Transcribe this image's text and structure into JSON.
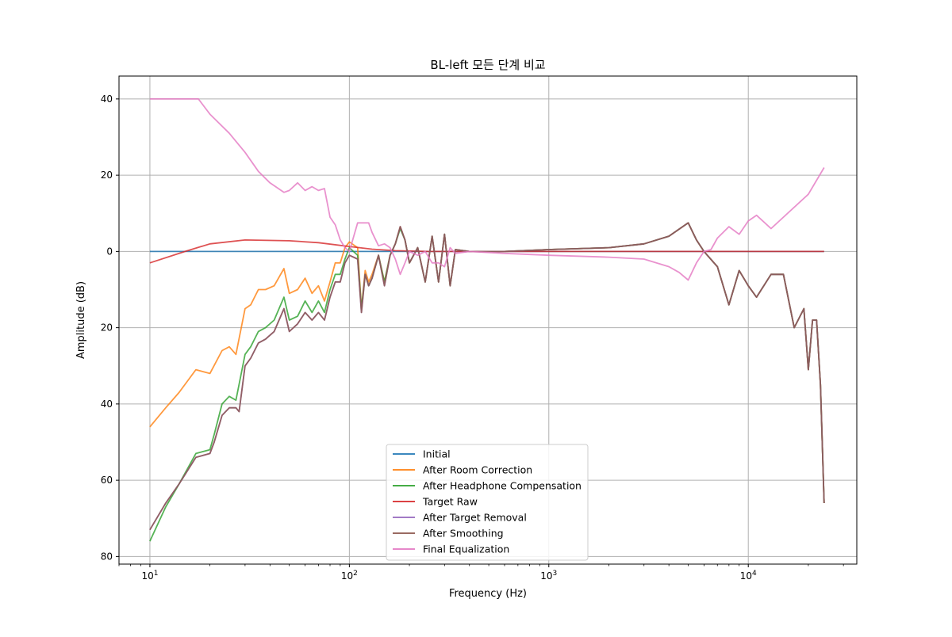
{
  "chart_data": {
    "type": "line",
    "title": "BL-left 모든 단계 비교",
    "xlabel": "Frequency (Hz)",
    "ylabel": "Amplitude (dB)",
    "xscale": "log",
    "xlim": [
      7,
      35000
    ],
    "ylim": [
      -82,
      46
    ],
    "grid": true,
    "legend_position": "lower center",
    "x_tick_labels": [
      {
        "base": "10",
        "exp": "1"
      },
      {
        "base": "10",
        "exp": "2"
      },
      {
        "base": "10",
        "exp": "3"
      },
      {
        "base": "10",
        "exp": "4"
      }
    ],
    "y_ticks": [
      40,
      20,
      0,
      -20,
      -40,
      -60,
      -80
    ],
    "y_tick_labels": [
      "40",
      "20",
      "0",
      "\u001f20",
      "\u001f40",
      "\u001f60",
      "\u001f80"
    ],
    "series": [
      {
        "name": "Initial",
        "color": "#1f77b4",
        "x": [
          10,
          24000
        ],
        "y": [
          0,
          0
        ]
      },
      {
        "name": "After Room Correction",
        "color": "#ff7f0e",
        "x": [
          10,
          12,
          14,
          17,
          20,
          23,
          25,
          27,
          30,
          32,
          35,
          38,
          42,
          47,
          50,
          55,
          60,
          65,
          70,
          75,
          80,
          85,
          90,
          95,
          100,
          110,
          115,
          120,
          125,
          130,
          140,
          150,
          160,
          170,
          180,
          190,
          200,
          220,
          240,
          260,
          280,
          300,
          320,
          340,
          400,
          600,
          1000,
          2000,
          3000,
          4000,
          5000,
          5500,
          6000,
          7000,
          8000,
          9000,
          10000,
          11000,
          13000,
          15000,
          17000,
          19000,
          20000,
          21000,
          22000,
          23000,
          24000
        ],
        "y": [
          -46,
          -41,
          -37,
          -31,
          -32,
          -26,
          -25,
          -27,
          -15,
          -14,
          -10,
          -10,
          -9,
          -4.5,
          -11,
          -10,
          -7,
          -11,
          -9,
          -13,
          -8,
          -3,
          -3,
          1,
          2.5,
          1,
          -15,
          -5,
          -8,
          -6,
          -1,
          -8,
          -1,
          2,
          6.5,
          3,
          -3,
          1,
          -8,
          4,
          -8,
          4.5,
          -9,
          0.5,
          0,
          0,
          0.5,
          1,
          2,
          4,
          7.5,
          3,
          0,
          -4,
          -14,
          -5,
          -9,
          -12,
          -6,
          -6,
          -20,
          -15,
          -31,
          -18,
          -18,
          -35,
          -66
        ]
      },
      {
        "name": "After Headphone Compensation",
        "color": "#2ca02c",
        "x": [
          10,
          12,
          14,
          17,
          20,
          21,
          23,
          25,
          27,
          30,
          32,
          35,
          38,
          42,
          47,
          50,
          55,
          60,
          65,
          70,
          75,
          80,
          85,
          90,
          95,
          100,
          110,
          115,
          120,
          125,
          130,
          140,
          150,
          160,
          170,
          180,
          190,
          200,
          220,
          240,
          260,
          280,
          300,
          320,
          340,
          400,
          600,
          1000,
          2000,
          3000,
          4000,
          5000,
          5500,
          6000,
          7000,
          8000,
          9000,
          10000,
          11000,
          13000,
          15000,
          17000,
          19000,
          20000,
          21000,
          22000,
          23000,
          24000
        ],
        "y": [
          -76,
          -67,
          -61,
          -53,
          -52,
          -48,
          -40,
          -38,
          -39,
          -27,
          -25,
          -21,
          -20,
          -18,
          -12,
          -18,
          -17,
          -13,
          -16,
          -13,
          -16,
          -10,
          -6,
          -6,
          -2,
          1,
          -1,
          -15,
          -6,
          -9,
          -7,
          -1,
          -8,
          -1,
          2,
          6,
          3,
          -3,
          1,
          -8,
          4,
          -8,
          4.5,
          -9,
          0.5,
          0,
          0,
          0.5,
          1,
          2,
          4,
          7.5,
          3,
          0,
          -4,
          -14,
          -5,
          -9,
          -12,
          -6,
          -6,
          -20,
          -15,
          -31,
          -18,
          -18,
          -35,
          -66
        ]
      },
      {
        "name": "Target Raw",
        "color": "#d62728",
        "x": [
          10,
          15,
          20,
          30,
          50,
          70,
          100,
          130,
          170,
          250,
          400,
          1000,
          24000
        ],
        "y": [
          -3,
          0,
          2,
          3,
          2.8,
          2.3,
          1.3,
          0.6,
          0.2,
          0,
          0,
          0,
          0
        ]
      },
      {
        "name": "After Target Removal",
        "color": "#9467bd",
        "x": [
          10,
          12,
          14,
          17,
          20,
          21,
          23,
          25,
          27,
          28,
          30,
          32,
          35,
          38,
          42,
          47,
          50,
          55,
          60,
          65,
          70,
          75,
          80,
          85,
          90,
          95,
          100,
          110,
          115,
          120,
          125,
          130,
          140,
          150,
          160,
          170,
          180,
          190,
          200,
          220,
          240,
          260,
          280,
          300,
          320,
          340,
          400,
          600,
          1000,
          2000,
          3000,
          4000,
          5000,
          5500,
          6000,
          7000,
          8000,
          9000,
          10000,
          11000,
          13000,
          15000,
          17000,
          19000,
          20000,
          21000,
          22000,
          23000,
          24000
        ],
        "y": [
          -73,
          -66,
          -61,
          -54,
          -53,
          -50,
          -43,
          -41,
          -41,
          -42,
          -30,
          -28,
          -24,
          -23,
          -21,
          -15,
          -21,
          -19,
          -16,
          -18,
          -16,
          -18,
          -12,
          -8,
          -8,
          -3,
          -1,
          -2,
          -16,
          -6,
          -9,
          -7,
          -1,
          -9,
          -1,
          2,
          6.5,
          3,
          -3,
          1,
          -8,
          4,
          -8,
          4.5,
          -9,
          0.5,
          0,
          0,
          0.5,
          1,
          2,
          4,
          7.5,
          3,
          0,
          -4,
          -14,
          -5,
          -9,
          -12,
          -6,
          -6,
          -20,
          -15,
          -31,
          -18,
          -18,
          -35,
          -66
        ]
      },
      {
        "name": "After Smoothing",
        "color": "#8c564b",
        "x": [
          10,
          12,
          14,
          17,
          20,
          21,
          23,
          25,
          27,
          28,
          30,
          32,
          35,
          38,
          42,
          47,
          50,
          55,
          60,
          65,
          70,
          75,
          80,
          85,
          90,
          95,
          100,
          110,
          115,
          120,
          125,
          130,
          140,
          150,
          160,
          170,
          180,
          190,
          200,
          220,
          240,
          260,
          280,
          300,
          320,
          340,
          400,
          600,
          1000,
          2000,
          3000,
          4000,
          5000,
          5500,
          6000,
          7000,
          8000,
          9000,
          10000,
          11000,
          13000,
          15000,
          17000,
          19000,
          20000,
          21000,
          22000,
          23000,
          24000
        ],
        "y": [
          -73,
          -66,
          -61,
          -54,
          -53,
          -50,
          -43,
          -41,
          -41,
          -42,
          -30,
          -28,
          -24,
          -23,
          -21,
          -15,
          -21,
          -19,
          -16,
          -18,
          -16,
          -18,
          -12,
          -8,
          -8,
          -3,
          -1,
          -2,
          -16,
          -6,
          -9,
          -7,
          -1,
          -9,
          -1,
          2,
          6.5,
          3,
          -3,
          1,
          -8,
          4,
          -8,
          4.5,
          -9,
          0.5,
          0,
          0,
          0.5,
          1,
          2,
          4,
          7.5,
          3,
          0,
          -4,
          -14,
          -5,
          -9,
          -12,
          -6,
          -6,
          -20,
          -15,
          -31,
          -18,
          -18,
          -35,
          -66
        ]
      },
      {
        "name": "Final Equalization",
        "color": "#e377c2",
        "x": [
          10,
          15,
          17.5,
          20,
          25,
          30,
          35,
          40,
          47,
          50,
          55,
          60,
          65,
          70,
          75,
          80,
          85,
          90,
          95,
          100,
          110,
          115,
          125,
          130,
          140,
          150,
          160,
          170,
          180,
          190,
          200,
          220,
          240,
          260,
          280,
          300,
          320,
          340,
          400,
          600,
          1000,
          2000,
          3000,
          4000,
          4500,
          5000,
          5500,
          6000,
          6500,
          7000,
          8000,
          9000,
          10000,
          11000,
          13000,
          15000,
          20000,
          24000
        ],
        "y": [
          40,
          40,
          40,
          36,
          31,
          26,
          21,
          18,
          15.5,
          16,
          18,
          16,
          17,
          16,
          16.5,
          9,
          7,
          3,
          1,
          0,
          7.5,
          7.5,
          7.5,
          5,
          1.5,
          2,
          1,
          -2,
          -6,
          -3,
          0,
          -1,
          0,
          -3,
          -3,
          -4,
          1,
          -0.5,
          0,
          -0.5,
          -1,
          -1.5,
          -2,
          -4,
          -5.5,
          -7.5,
          -3,
          0,
          0.5,
          3.5,
          6.5,
          4.5,
          8,
          9.5,
          6,
          9,
          15,
          22
        ]
      }
    ]
  }
}
